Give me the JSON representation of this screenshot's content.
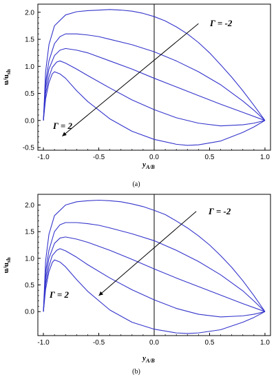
{
  "chart_data": [
    {
      "type": "line",
      "caption": "(a)",
      "xlabel": "y",
      "xlabel_sub": "A/B",
      "ylabel": "u/u",
      "ylabel_sub": "sh",
      "xlim": [
        -1.05,
        1.05
      ],
      "ylim": [
        -0.55,
        2.15
      ],
      "xticks": [
        "-1.0",
        "-0.5",
        "0.0",
        "0.5",
        "1.0"
      ],
      "yticks": [
        "-0.5",
        "0.0",
        "0.5",
        "1.0",
        "1.5",
        "2.0"
      ],
      "annotation_top": "Γ = -2",
      "annotation_bottom": "Γ = 2",
      "series_color": "#3333cc",
      "series": [
        {
          "points": [
            [
              -1.0,
              0.0
            ],
            [
              -0.98,
              0.9
            ],
            [
              -0.95,
              1.4
            ],
            [
              -0.9,
              1.75
            ],
            [
              -0.8,
              1.95
            ],
            [
              -0.7,
              2.01
            ],
            [
              -0.6,
              2.03
            ],
            [
              -0.5,
              2.04
            ],
            [
              -0.4,
              2.05
            ],
            [
              -0.3,
              2.04
            ],
            [
              -0.2,
              2.02
            ],
            [
              -0.1,
              1.98
            ],
            [
              0.0,
              1.92
            ],
            [
              0.1,
              1.84
            ],
            [
              0.2,
              1.73
            ],
            [
              0.3,
              1.6
            ],
            [
              0.4,
              1.44
            ],
            [
              0.5,
              1.25
            ],
            [
              0.6,
              1.03
            ],
            [
              0.7,
              0.8
            ],
            [
              0.8,
              0.55
            ],
            [
              0.9,
              0.28
            ],
            [
              1.0,
              0.0
            ]
          ]
        },
        {
          "points": [
            [
              -1.0,
              0.0
            ],
            [
              -0.98,
              0.7
            ],
            [
              -0.95,
              1.1
            ],
            [
              -0.9,
              1.42
            ],
            [
              -0.85,
              1.55
            ],
            [
              -0.8,
              1.6
            ],
            [
              -0.7,
              1.6
            ],
            [
              -0.6,
              1.58
            ],
            [
              -0.5,
              1.55
            ],
            [
              -0.4,
              1.5
            ],
            [
              -0.2,
              1.4
            ],
            [
              0.0,
              1.27
            ],
            [
              0.2,
              1.1
            ],
            [
              0.4,
              0.9
            ],
            [
              0.6,
              0.66
            ],
            [
              0.8,
              0.36
            ],
            [
              0.9,
              0.19
            ],
            [
              1.0,
              0.0
            ]
          ]
        },
        {
          "points": [
            [
              -1.0,
              0.0
            ],
            [
              -0.98,
              0.6
            ],
            [
              -0.95,
              0.95
            ],
            [
              -0.9,
              1.2
            ],
            [
              -0.85,
              1.3
            ],
            [
              -0.8,
              1.33
            ],
            [
              -0.7,
              1.3
            ],
            [
              -0.6,
              1.25
            ],
            [
              -0.4,
              1.1
            ],
            [
              -0.2,
              0.95
            ],
            [
              0.0,
              0.78
            ],
            [
              0.2,
              0.62
            ],
            [
              0.4,
              0.46
            ],
            [
              0.6,
              0.3
            ],
            [
              0.8,
              0.15
            ],
            [
              1.0,
              0.0
            ]
          ]
        },
        {
          "points": [
            [
              -1.0,
              0.0
            ],
            [
              -0.98,
              0.5
            ],
            [
              -0.95,
              0.8
            ],
            [
              -0.92,
              0.98
            ],
            [
              -0.88,
              1.08
            ],
            [
              -0.85,
              1.1
            ],
            [
              -0.8,
              1.06
            ],
            [
              -0.7,
              0.95
            ],
            [
              -0.6,
              0.83
            ],
            [
              -0.4,
              0.6
            ],
            [
              -0.2,
              0.38
            ],
            [
              0.0,
              0.2
            ],
            [
              0.2,
              0.05
            ],
            [
              0.4,
              -0.05
            ],
            [
              0.6,
              -0.1
            ],
            [
              0.8,
              -0.08
            ],
            [
              0.9,
              -0.05
            ],
            [
              1.0,
              0.0
            ]
          ]
        },
        {
          "points": [
            [
              -1.0,
              0.0
            ],
            [
              -0.98,
              0.4
            ],
            [
              -0.95,
              0.7
            ],
            [
              -0.92,
              0.86
            ],
            [
              -0.9,
              0.9
            ],
            [
              -0.85,
              0.86
            ],
            [
              -0.8,
              0.78
            ],
            [
              -0.7,
              0.55
            ],
            [
              -0.6,
              0.35
            ],
            [
              -0.4,
              0.03
            ],
            [
              -0.2,
              -0.2
            ],
            [
              0.0,
              -0.35
            ],
            [
              0.2,
              -0.44
            ],
            [
              0.3,
              -0.46
            ],
            [
              0.4,
              -0.45
            ],
            [
              0.6,
              -0.38
            ],
            [
              0.8,
              -0.22
            ],
            [
              0.9,
              -0.12
            ],
            [
              1.0,
              0.0
            ]
          ]
        }
      ]
    },
    {
      "type": "line",
      "caption": "(b)",
      "xlabel": "y",
      "xlabel_sub": "A/B",
      "ylabel": "u/u",
      "ylabel_sub": "sh",
      "xlim": [
        -1.05,
        1.05
      ],
      "ylim": [
        -0.45,
        2.2
      ],
      "xticks": [
        "-1.0",
        "-0.5",
        "0.0",
        "0.5",
        "1.0"
      ],
      "yticks": [
        "0.0",
        "0.5",
        "1.0",
        "1.5",
        "2.0"
      ],
      "annotation_top": "Γ = -2",
      "annotation_bottom": "Γ = 2",
      "series_color": "#3333cc",
      "series": [
        {
          "points": [
            [
              -1.0,
              0.0
            ],
            [
              -0.98,
              0.95
            ],
            [
              -0.95,
              1.45
            ],
            [
              -0.9,
              1.8
            ],
            [
              -0.8,
              2.0
            ],
            [
              -0.7,
              2.06
            ],
            [
              -0.6,
              2.08
            ],
            [
              -0.5,
              2.09
            ],
            [
              -0.4,
              2.08
            ],
            [
              -0.3,
              2.06
            ],
            [
              -0.2,
              2.02
            ],
            [
              -0.1,
              1.97
            ],
            [
              0.0,
              1.9
            ],
            [
              0.1,
              1.82
            ],
            [
              0.2,
              1.7
            ],
            [
              0.3,
              1.57
            ],
            [
              0.4,
              1.42
            ],
            [
              0.5,
              1.25
            ],
            [
              0.6,
              1.05
            ],
            [
              0.7,
              0.83
            ],
            [
              0.8,
              0.58
            ],
            [
              0.9,
              0.3
            ],
            [
              1.0,
              0.0
            ]
          ]
        },
        {
          "points": [
            [
              -1.0,
              0.0
            ],
            [
              -0.98,
              0.75
            ],
            [
              -0.95,
              1.15
            ],
            [
              -0.9,
              1.5
            ],
            [
              -0.85,
              1.63
            ],
            [
              -0.8,
              1.67
            ],
            [
              -0.7,
              1.67
            ],
            [
              -0.6,
              1.65
            ],
            [
              -0.5,
              1.62
            ],
            [
              -0.4,
              1.57
            ],
            [
              -0.2,
              1.46
            ],
            [
              0.0,
              1.33
            ],
            [
              0.2,
              1.15
            ],
            [
              0.4,
              0.94
            ],
            [
              0.6,
              0.69
            ],
            [
              0.8,
              0.39
            ],
            [
              0.9,
              0.2
            ],
            [
              1.0,
              0.0
            ]
          ]
        },
        {
          "points": [
            [
              -1.0,
              0.0
            ],
            [
              -0.98,
              0.62
            ],
            [
              -0.95,
              1.0
            ],
            [
              -0.9,
              1.28
            ],
            [
              -0.85,
              1.38
            ],
            [
              -0.8,
              1.4
            ],
            [
              -0.7,
              1.36
            ],
            [
              -0.6,
              1.3
            ],
            [
              -0.4,
              1.15
            ],
            [
              -0.2,
              0.98
            ],
            [
              0.0,
              0.8
            ],
            [
              0.2,
              0.63
            ],
            [
              0.4,
              0.47
            ],
            [
              0.6,
              0.31
            ],
            [
              0.8,
              0.15
            ],
            [
              1.0,
              0.0
            ]
          ]
        },
        {
          "points": [
            [
              -1.0,
              0.0
            ],
            [
              -0.98,
              0.52
            ],
            [
              -0.95,
              0.85
            ],
            [
              -0.92,
              1.05
            ],
            [
              -0.88,
              1.15
            ],
            [
              -0.85,
              1.18
            ],
            [
              -0.8,
              1.14
            ],
            [
              -0.7,
              1.02
            ],
            [
              -0.6,
              0.88
            ],
            [
              -0.4,
              0.63
            ],
            [
              -0.2,
              0.41
            ],
            [
              0.0,
              0.22
            ],
            [
              0.2,
              0.06
            ],
            [
              0.4,
              -0.05
            ],
            [
              0.6,
              -0.1
            ],
            [
              0.8,
              -0.08
            ],
            [
              0.9,
              -0.05
            ],
            [
              1.0,
              0.0
            ]
          ]
        },
        {
          "points": [
            [
              -1.0,
              0.0
            ],
            [
              -0.98,
              0.42
            ],
            [
              -0.95,
              0.75
            ],
            [
              -0.92,
              0.92
            ],
            [
              -0.9,
              0.97
            ],
            [
              -0.85,
              0.93
            ],
            [
              -0.8,
              0.84
            ],
            [
              -0.7,
              0.6
            ],
            [
              -0.6,
              0.38
            ],
            [
              -0.4,
              0.03
            ],
            [
              -0.2,
              -0.2
            ],
            [
              0.0,
              -0.33
            ],
            [
              0.2,
              -0.4
            ],
            [
              0.3,
              -0.41
            ],
            [
              0.4,
              -0.4
            ],
            [
              0.6,
              -0.34
            ],
            [
              0.8,
              -0.2
            ],
            [
              0.9,
              -0.11
            ],
            [
              1.0,
              0.0
            ]
          ]
        }
      ]
    }
  ]
}
